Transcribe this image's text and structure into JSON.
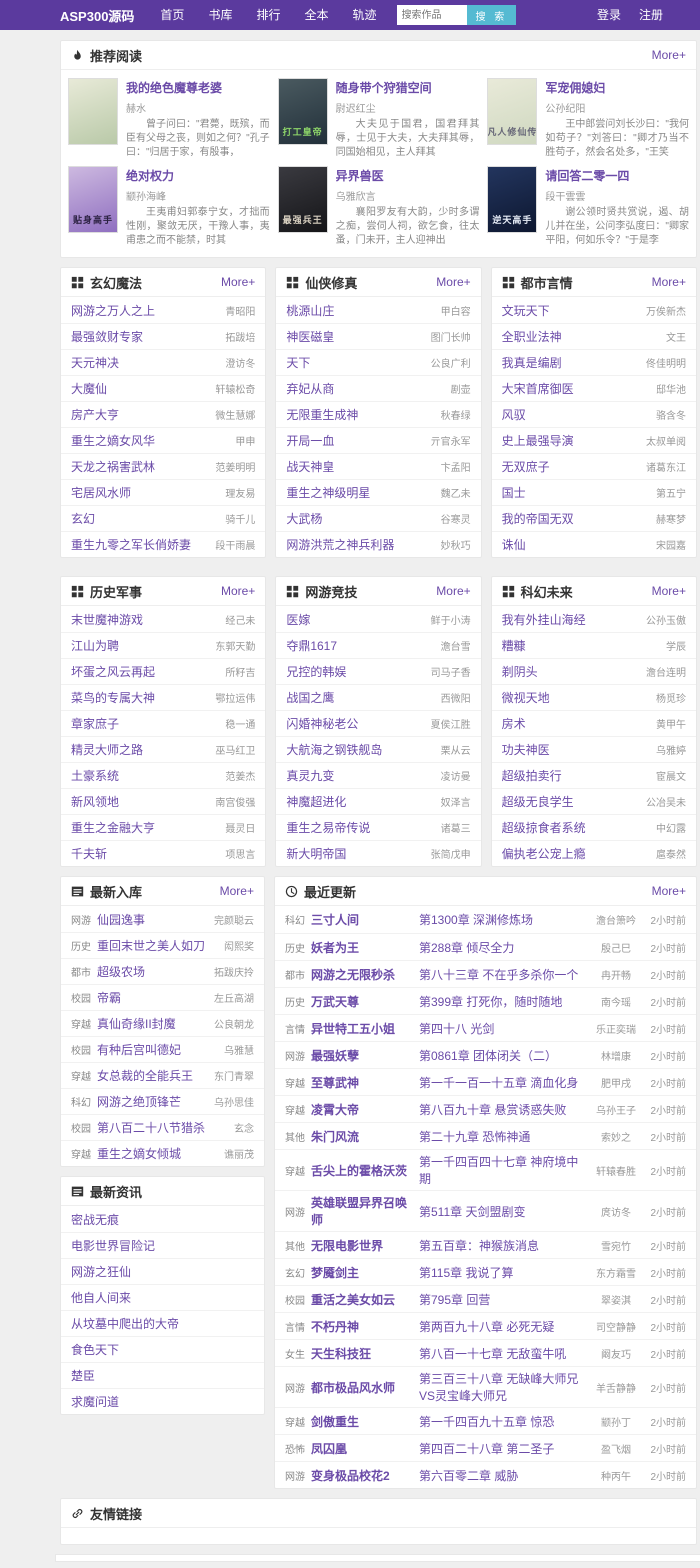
{
  "nav": {
    "brand": "ASP300源码",
    "links": [
      "首页",
      "书库",
      "排行",
      "全本",
      "轨迹"
    ],
    "search_placeholder": "搜索作品",
    "search_button": "搜 索",
    "login": "登录",
    "register": "注册"
  },
  "recommend": {
    "title": "推荐阅读",
    "more": "More+",
    "books": [
      {
        "title": "我的绝色魔尊老婆",
        "author": "赫水",
        "desc": "曾子问曰：\"君薨，既殡，而臣有父母之丧，则如之何？\"孔子曰：\"归居于家，有殷事，",
        "cover_text": "",
        "cover_from": "#e8ead8",
        "cover_to": "#b9c9a8",
        "cover_text_color": "#555"
      },
      {
        "title": "随身带个狩猎空间",
        "author": "尉迟红尘",
        "desc": "大夫见于国君，国君拜其辱，士见于大夫，大夫拜其辱，同国始相见，主人拜其",
        "cover_text": "打工皇帝",
        "cover_from": "#4a5a60",
        "cover_to": "#22303a",
        "cover_text_color": "#8fd86a"
      },
      {
        "title": "军宠佣媳妇",
        "author": "公孙纪阳",
        "desc": "王中郎尝问刘长沙曰：\"我何如苟子？\"刘答曰：\"卿才乃当不胜苟子，然会名处多，\"王笑",
        "cover_text": "凡人修仙传",
        "cover_from": "#e9ead9",
        "cover_to": "#cfd8c0",
        "cover_text_color": "#667"
      },
      {
        "title": "绝对权力",
        "author": "颛孙海峰",
        "desc": "王夷甫妇郭泰宁女，才拙而性刚，聚敛无厌，干豫人事，夷甫患之而不能禁，时其",
        "cover_text": "贴身高手",
        "cover_from": "#cdb9e0",
        "cover_to": "#8f6fc0",
        "cover_text_color": "#2a2040"
      },
      {
        "title": "异界兽医",
        "author": "乌雅欣言",
        "desc": "襄阳罗友有大韵，少时多谓之痴，尝伺人祠，欲乞食，往太蚤，门未开，主人迎神出",
        "cover_text": "最强兵王",
        "cover_from": "#3a3a40",
        "cover_to": "#151518",
        "cover_text_color": "#d8d0c0"
      },
      {
        "title": "请回答二零一四",
        "author": "段干雲雲",
        "desc": "谢公领时贤共赏说，遏、胡儿并在坐，公问李弘度曰：\"卿家平阳，何如乐令？\"于是李",
        "cover_text": "逆天高手",
        "cover_from": "#23355e",
        "cover_to": "#0d1730",
        "cover_text_color": "#e8eef8"
      }
    ]
  },
  "categories": [
    {
      "title": "玄幻魔法",
      "more": "More+",
      "books": [
        {
          "title": "网游之万人之上",
          "author": "青昭阳"
        },
        {
          "title": "最强敛财专家",
          "author": "拓跋培"
        },
        {
          "title": "天元神决",
          "author": "澄访冬"
        },
        {
          "title": "大魔仙",
          "author": "轩辕松奇"
        },
        {
          "title": "房产大亨",
          "author": "微生慧娜"
        },
        {
          "title": "重生之嫡女风华",
          "author": "甲申"
        },
        {
          "title": "天龙之祸害武林",
          "author": "范姜明明"
        },
        {
          "title": "宅居风水师",
          "author": "理友易"
        },
        {
          "title": "玄幻",
          "author": "骑千儿"
        },
        {
          "title": "重生九零之军长俏娇妻",
          "author": "段干雨晨"
        }
      ]
    },
    {
      "title": "仙侠修真",
      "more": "More+",
      "books": [
        {
          "title": "桃源山庄",
          "author": "甲白容"
        },
        {
          "title": "神医磁皇",
          "author": "图门长帅"
        },
        {
          "title": "天下",
          "author": "公良广利"
        },
        {
          "title": "弃妃从商",
          "author": "剧壶"
        },
        {
          "title": "无限重生成神",
          "author": "秋春绿"
        },
        {
          "title": "开局一血",
          "author": "亓官永军"
        },
        {
          "title": "战天神皇",
          "author": "卞孟阳"
        },
        {
          "title": "重生之神级明星",
          "author": "魏乙未"
        },
        {
          "title": "大武杨",
          "author": "谷寒灵"
        },
        {
          "title": "网游洪荒之神兵利器",
          "author": "妙秋巧"
        }
      ]
    },
    {
      "title": "都市言情",
      "more": "More+",
      "books": [
        {
          "title": "文玩天下",
          "author": "万俟新杰"
        },
        {
          "title": "全职业法神",
          "author": "文王"
        },
        {
          "title": "我真是编剧",
          "author": "佟佳明明"
        },
        {
          "title": "大宋首席御医",
          "author": "邸华池"
        },
        {
          "title": "风驭",
          "author": "骆含冬"
        },
        {
          "title": "史上最强导演",
          "author": "太叔单阅"
        },
        {
          "title": "无双庶子",
          "author": "诸葛东江"
        },
        {
          "title": "国士",
          "author": "第五宁"
        },
        {
          "title": "我的帝国无双",
          "author": "赫寒梦"
        },
        {
          "title": "诛仙",
          "author": "宋园嘉"
        }
      ]
    },
    {
      "title": "历史军事",
      "more": "More+",
      "books": [
        {
          "title": "末世魔神游戏",
          "author": "经己未"
        },
        {
          "title": "江山为聘",
          "author": "东郭天勤"
        },
        {
          "title": "坏蛋之风云再起",
          "author": "所籽吉"
        },
        {
          "title": "菜鸟的专属大神",
          "author": "鄂拉运伟"
        },
        {
          "title": "章家庶子",
          "author": "稳一通"
        },
        {
          "title": "精灵大师之路",
          "author": "巫马红卫"
        },
        {
          "title": "土豪系统",
          "author": "范姜杰"
        },
        {
          "title": "新风领地",
          "author": "南宫俊强"
        },
        {
          "title": "重生之金融大亨",
          "author": "聂灵日"
        },
        {
          "title": "千夫斩",
          "author": "项思言"
        }
      ]
    },
    {
      "title": "网游竞技",
      "more": "More+",
      "books": [
        {
          "title": "医嫁",
          "author": "鲜于小涛"
        },
        {
          "title": "夺鼎1617",
          "author": "澹台雪"
        },
        {
          "title": "兄控的韩娱",
          "author": "司马子香"
        },
        {
          "title": "战国之鹰",
          "author": "西微阳"
        },
        {
          "title": "闪婚神秘老公",
          "author": "夏侯江胜"
        },
        {
          "title": "大航海之钢铁舰岛",
          "author": "栗从云"
        },
        {
          "title": "真灵九变",
          "author": "凌访曼"
        },
        {
          "title": "神魔超进化",
          "author": "奴泽言"
        },
        {
          "title": "重生之易帝传说",
          "author": "诸葛三"
        },
        {
          "title": "新大明帝国",
          "author": "张简戊申"
        }
      ]
    },
    {
      "title": "科幻未来",
      "more": "More+",
      "books": [
        {
          "title": "我有外挂山海经",
          "author": "公孙玉傲"
        },
        {
          "title": "糟糠",
          "author": "学辰"
        },
        {
          "title": "剃阴头",
          "author": "澹台连明"
        },
        {
          "title": "微视天地",
          "author": "杨觅珍"
        },
        {
          "title": "房术",
          "author": "黄甲午"
        },
        {
          "title": "功夫神医",
          "author": "乌雅婷"
        },
        {
          "title": "超级拍卖行",
          "author": "宦晨文"
        },
        {
          "title": "超级无良学生",
          "author": "公冶吴未"
        },
        {
          "title": "超级掠食者系统",
          "author": "中幻露"
        },
        {
          "title": "偏执老公宠上瘾",
          "author": "扈泰然"
        }
      ]
    }
  ],
  "latest_in": {
    "title": "最新入库",
    "more": "More+",
    "items": [
      {
        "cat": "网游",
        "title": "仙园逸事",
        "author": "完颜聪云"
      },
      {
        "cat": "历史",
        "title": "重回末世之美人如刀",
        "author": "闳熙奖"
      },
      {
        "cat": "都市",
        "title": "超级农场",
        "author": "拓跋庆拎"
      },
      {
        "cat": "校园",
        "title": "帝霸",
        "author": "左丘高湖"
      },
      {
        "cat": "穿越",
        "title": "真仙奇缘II封魔",
        "author": "公良朝龙"
      },
      {
        "cat": "校园",
        "title": "有种后宫叫德妃",
        "author": "乌雅慧"
      },
      {
        "cat": "穿越",
        "title": "女总裁的全能兵王",
        "author": "东门青翠"
      },
      {
        "cat": "科幻",
        "title": "网游之绝顶锋芒",
        "author": "乌孙思佳"
      },
      {
        "cat": "校园",
        "title": "第八百二十八节猎杀",
        "author": "玄念"
      },
      {
        "cat": "穿越",
        "title": "重生之嫡女倾城",
        "author": "谯丽茂"
      }
    ]
  },
  "news": {
    "title": "最新资讯",
    "items": [
      "密战无痕",
      "电影世界冒险记",
      "网游之狂仙",
      "他自人间来",
      "从坟墓中爬出的大帝",
      "食色天下",
      "楚臣",
      "求魔问道"
    ]
  },
  "updates": {
    "title": "最近更新",
    "more": "More+",
    "rows": [
      {
        "cat": "科幻",
        "title": "三寸人间",
        "chapter": "第1300章 深渊修炼场",
        "author": "澹台箫吟",
        "time": "2小时前"
      },
      {
        "cat": "历史",
        "title": "妖者为王",
        "chapter": "第288章 倾尽全力",
        "author": "殷己巳",
        "time": "2小时前"
      },
      {
        "cat": "都市",
        "title": "网游之无限秒杀",
        "chapter": "第八十三章 不在乎多杀你一个",
        "author": "冉开畅",
        "time": "2小时前"
      },
      {
        "cat": "历史",
        "title": "万武天尊",
        "chapter": "第399章 打死你，随时随地",
        "author": "南今瑶",
        "time": "2小时前"
      },
      {
        "cat": "言情",
        "title": "异世特工五小姐",
        "chapter": "第四十八 光剑",
        "author": "乐正奕瑞",
        "time": "2小时前"
      },
      {
        "cat": "网游",
        "title": "最强妖孽",
        "chapter": "第0861章 团体闭关（二）",
        "author": "林增康",
        "time": "2小时前"
      },
      {
        "cat": "穿越",
        "title": "至尊武神",
        "chapter": "第一千一百一十五章 滴血化身",
        "author": "肥甲戌",
        "time": "2小时前"
      },
      {
        "cat": "穿越",
        "title": "凌霄大帝",
        "chapter": "第八百九十章 悬赏诱惑失败",
        "author": "乌孙王子",
        "time": "2小时前"
      },
      {
        "cat": "其他",
        "title": "朱门风流",
        "chapter": "第二十九章 恐怖神通",
        "author": "索妙之",
        "time": "2小时前"
      },
      {
        "cat": "穿越",
        "title": "舌尖上的霍格沃茨",
        "chapter": "第一千四百四十七章 神府境中期",
        "author": "轩辕春胜",
        "time": "2小时前"
      },
      {
        "cat": "网游",
        "title": "英雄联盟异界召唤师",
        "chapter": "第511章 天剑盟剧变",
        "author": "庹访冬",
        "time": "2小时前"
      },
      {
        "cat": "其他",
        "title": "无限电影世界",
        "chapter": "第五百章：神猴族消息",
        "author": "雪宛竹",
        "time": "2小时前"
      },
      {
        "cat": "玄幻",
        "title": "梦魇剑主",
        "chapter": "第115章 我说了算",
        "author": "东方霜雪",
        "time": "2小时前"
      },
      {
        "cat": "校园",
        "title": "重活之美女如云",
        "chapter": "第795章 回营",
        "author": "翠姿淇",
        "time": "2小时前"
      },
      {
        "cat": "言情",
        "title": "不朽丹神",
        "chapter": "第两百九十八章 必死无疑",
        "author": "司空静静",
        "time": "2小时前"
      },
      {
        "cat": "女生",
        "title": "天生科技狂",
        "chapter": "第八百一十七章 无敌蛮牛吼",
        "author": "阚友巧",
        "time": "2小时前"
      },
      {
        "cat": "网游",
        "title": "都市极品风水师",
        "chapter": "第三百三十八章 无缺峰大师兄VS灵宝峰大师兄",
        "author": "羊舌静静",
        "time": "2小时前"
      },
      {
        "cat": "穿越",
        "title": "剑傲重生",
        "chapter": "第一千四百九十五章 惊恐",
        "author": "颛孙丁",
        "time": "2小时前"
      },
      {
        "cat": "恐怖",
        "title": "凤囚凰",
        "chapter": "第四百二十八章 第二圣子",
        "author": "盈飞烟",
        "time": "2小时前"
      },
      {
        "cat": "网游",
        "title": "变身极品校花2",
        "chapter": "第六百零二章 威胁",
        "author": "种丙午",
        "time": "2小时前"
      }
    ]
  },
  "friend_links": {
    "title": "友情链接"
  },
  "colors": {
    "accent": "#5b3a9e",
    "link": "#6b4ba8",
    "search_button": "#55bad2"
  }
}
